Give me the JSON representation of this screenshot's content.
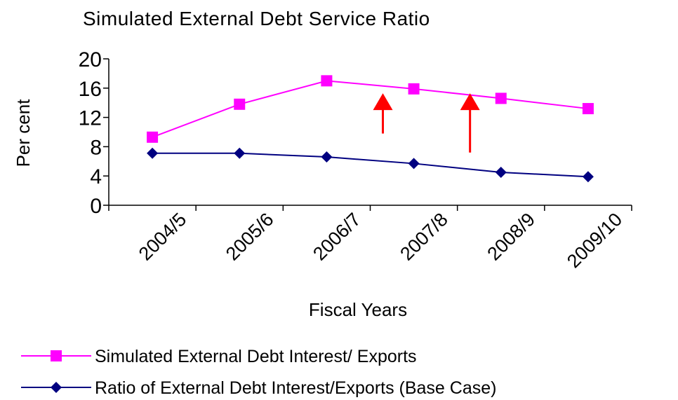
{
  "chart_data": {
    "type": "line",
    "title": "Simulated External Debt Service Ratio",
    "xlabel": "Fiscal Years",
    "ylabel": "Per cent",
    "categories": [
      "2004/5",
      "2005/6",
      "2006/7",
      "2007/8",
      "2008/9",
      "2009/10"
    ],
    "ylim": [
      0,
      20
    ],
    "yticks": [
      0,
      4,
      8,
      12,
      16,
      20
    ],
    "grid": false,
    "legend_position": "bottom",
    "series": [
      {
        "name": "Simulated External Debt Interest/ Exports",
        "color": "#ff00ff",
        "marker": "square",
        "values": [
          9.3,
          13.8,
          17.0,
          15.9,
          14.6,
          13.2
        ]
      },
      {
        "name": "Ratio of External Debt Interest/Exports (Base Case)",
        "color": "#000080",
        "marker": "diamond",
        "values": [
          7.1,
          7.1,
          6.6,
          5.7,
          4.5,
          3.9
        ]
      }
    ],
    "annotations": [
      {
        "type": "arrow",
        "color": "#ff0000",
        "near_category": "2006/7",
        "from_y": 9.8,
        "to_y": 15.3
      },
      {
        "type": "arrow",
        "color": "#ff0000",
        "near_category": "2007/8",
        "from_y": 7.2,
        "to_y": 15.3
      }
    ]
  }
}
